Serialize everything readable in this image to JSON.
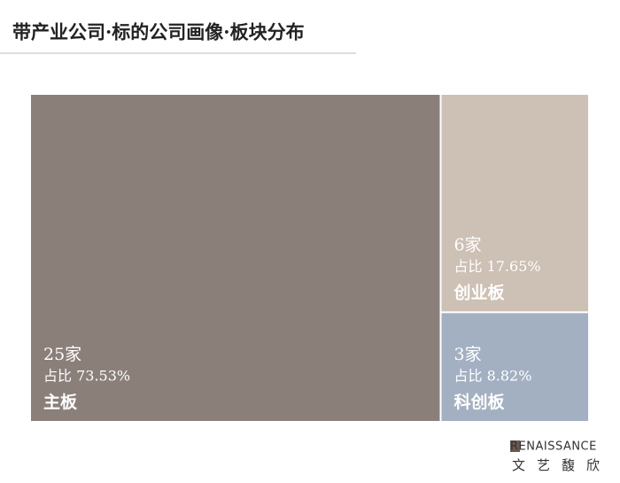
{
  "chart_data": {
    "type": "treemap",
    "title": "带产业公司·标的公司画像·板块分布",
    "categories": [
      "主板",
      "创业板",
      "科创板"
    ],
    "values": [
      25,
      6,
      3
    ],
    "value_labels": [
      "25家",
      "6家",
      "3家"
    ],
    "shares": [
      73.53,
      17.65,
      8.82
    ],
    "share_labels": [
      "占比 73.53%",
      "占比 17.65%",
      "占比 8.82%"
    ],
    "colors": [
      "#8b7f7a",
      "#cdc0b4",
      "#a3b0c2"
    ]
  },
  "brand": {
    "name": "RENAISSANCE",
    "subtitle": "文艺馥欣"
  }
}
